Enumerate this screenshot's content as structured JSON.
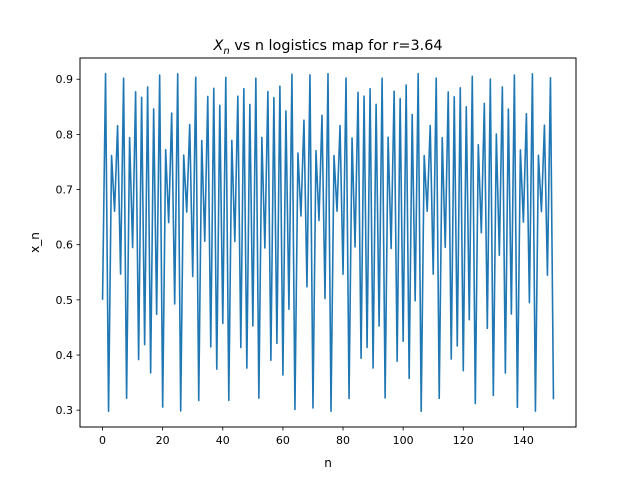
{
  "chart_data": {
    "type": "line",
    "title_prefix": "X",
    "title_subscript": "n",
    "title_suffix": " vs n logistics map for r=3.64",
    "xlabel": "n",
    "ylabel": "x_n",
    "r": 3.64,
    "x0": 0.5,
    "n_points": 151,
    "xlim": [
      -7.5,
      157.5
    ],
    "ylim": [
      0.2695,
      0.9385
    ],
    "xticks": [
      0,
      20,
      40,
      60,
      80,
      100,
      120,
      140
    ],
    "yticks": [
      0.3,
      0.4,
      0.5,
      0.6,
      0.7,
      0.8,
      0.9
    ],
    "ytick_labels": [
      "0.3",
      "0.4",
      "0.5",
      "0.6",
      "0.7",
      "0.8",
      "0.9"
    ],
    "grid": false,
    "series": [
      {
        "color": "#1f77b4"
      }
    ]
  }
}
